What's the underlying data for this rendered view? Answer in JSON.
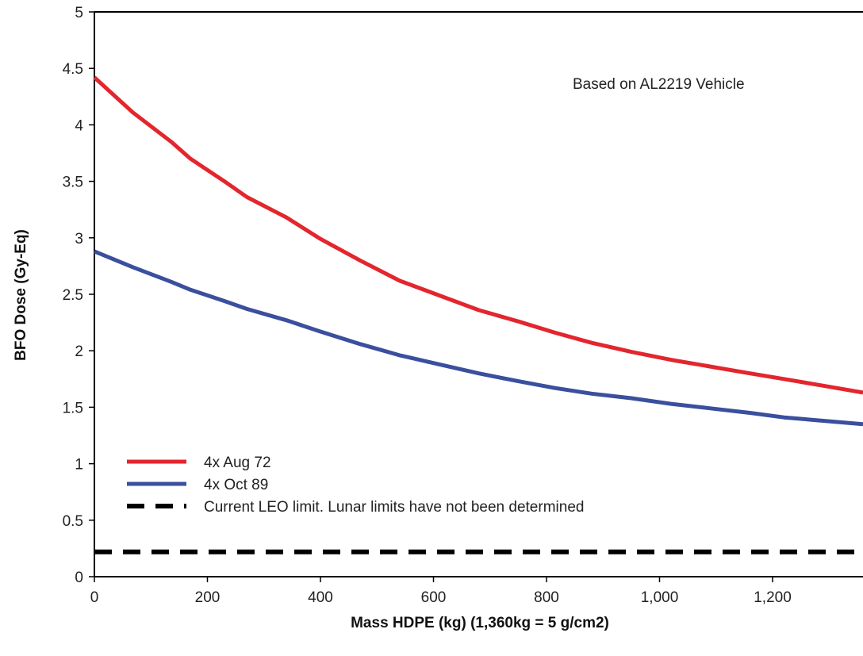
{
  "chart_data": {
    "type": "line",
    "xlabel": "Mass HDPE (kg) (1,360kg = 5 g/cm2)",
    "ylabel": "BFO Dose (Gy-Eq)",
    "xlim": [
      0,
      1360
    ],
    "ylim": [
      0,
      5
    ],
    "x_ticks": [
      0,
      200,
      400,
      600,
      800,
      1000,
      1200
    ],
    "x_tick_labels": [
      "0",
      "200",
      "400",
      "600",
      "800",
      "1,000",
      "1,200"
    ],
    "y_ticks": [
      0,
      0.5,
      1,
      1.5,
      2,
      2.5,
      3,
      3.5,
      4,
      4.5,
      5
    ],
    "y_tick_labels": [
      "0",
      "0.5",
      "1",
      "1.5",
      "2",
      "2.5",
      "3",
      "3.5",
      "4",
      "4.5",
      "5"
    ],
    "grid": false,
    "legend_position": "bottom-left",
    "annotation": "Based on AL2219 Vehicle",
    "series": [
      {
        "name": "4x Aug 72",
        "color": "#e3262e",
        "style": "solid",
        "x": [
          0,
          68,
          136,
          170,
          230,
          270,
          340,
          400,
          470,
          540,
          610,
          680,
          750,
          815,
          880,
          950,
          1020,
          1090,
          1160,
          1220,
          1290,
          1360
        ],
        "y": [
          4.42,
          4.11,
          3.85,
          3.7,
          3.5,
          3.36,
          3.18,
          2.99,
          2.8,
          2.62,
          2.49,
          2.36,
          2.26,
          2.16,
          2.07,
          1.99,
          1.92,
          1.86,
          1.8,
          1.75,
          1.69,
          1.63
        ]
      },
      {
        "name": "4x Oct 89",
        "color": "#3a4f9e",
        "style": "solid",
        "x": [
          0,
          68,
          136,
          170,
          230,
          270,
          340,
          400,
          470,
          540,
          610,
          680,
          750,
          815,
          880,
          950,
          1020,
          1090,
          1160,
          1220,
          1290,
          1360
        ],
        "y": [
          2.88,
          2.74,
          2.61,
          2.54,
          2.44,
          2.37,
          2.27,
          2.17,
          2.06,
          1.96,
          1.88,
          1.8,
          1.73,
          1.67,
          1.62,
          1.58,
          1.53,
          1.49,
          1.45,
          1.41,
          1.38,
          1.35
        ]
      },
      {
        "name": "Current LEO limit.  Lunar limits have not been determined",
        "color": "#000000",
        "style": "dashed",
        "x": [
          0,
          1360
        ],
        "y": [
          0.22,
          0.22
        ]
      }
    ]
  }
}
